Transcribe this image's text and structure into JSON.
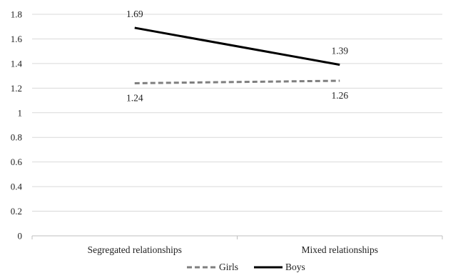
{
  "chart_data": {
    "type": "line",
    "categories": [
      "Segregated relationships",
      "Mixed relationships"
    ],
    "series": [
      {
        "name": "Girls",
        "values": [
          1.24,
          1.26
        ],
        "labels": [
          "1.24",
          "1.26"
        ],
        "color": "#7f7f7f",
        "style": "dashed"
      },
      {
        "name": "Boys",
        "values": [
          1.69,
          1.39
        ],
        "labels": [
          "1.69",
          "1.39"
        ],
        "color": "#000000",
        "style": "solid"
      }
    ],
    "ylim": [
      0,
      1.8
    ],
    "yticks": [
      0,
      0.2,
      0.4,
      0.6,
      0.8,
      1,
      1.2,
      1.4,
      1.6,
      1.8
    ],
    "ytick_labels": [
      "0",
      "0.2",
      "0.4",
      "0.6",
      "0.8",
      "1",
      "1.2",
      "1.4",
      "1.6",
      "1.8"
    ],
    "grid": true,
    "legend": "bottom",
    "title": "",
    "xlabel": "",
    "ylabel": ""
  }
}
